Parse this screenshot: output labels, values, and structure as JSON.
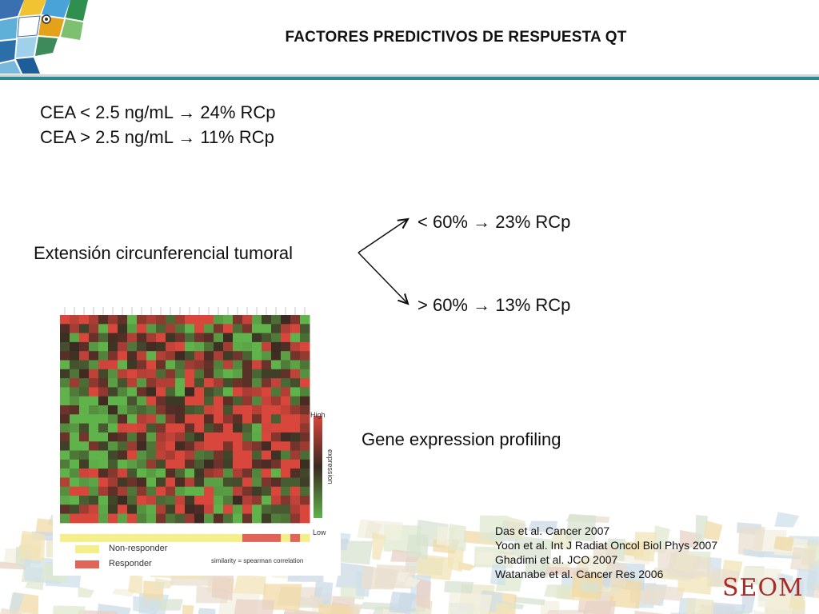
{
  "slide": {
    "title": "FACTORES PREDICTIVOS DE RESPUESTA QT",
    "cea_lines": [
      "CEA < 2.5 ng/mL → 24% RCp",
      "CEA > 2.5 ng/mL → 11% RCp"
    ],
    "extension": {
      "label": "Extensión circunferencial tumoral",
      "branches": [
        "< 60% → 23% RCp",
        "> 60% → 13% RCp"
      ]
    },
    "gene_label": "Gene expression profiling",
    "references": [
      "Das et al.  Cancer 2007",
      "Yoon et al. Int J Radiat Oncol Biol Phys 2007",
      "Ghadimi et al. JCO 2007",
      "Watanabe et al. Cancer Res 2006"
    ],
    "logo_text": "SEOM"
  },
  "heatmap": {
    "scale_high": "High",
    "scale_low": "Low",
    "scale_label": "expression",
    "legend": {
      "non_responder": "Non-responder",
      "responder": "Responder"
    },
    "similarity_note": "similarity = spearman correlation",
    "colors": {
      "red": "#d8463c",
      "green": "#5fb34a",
      "dark": "#3a2a22",
      "non_responder": "#f4ef8a",
      "responder": "#e06458"
    }
  },
  "theme": {
    "title_rule": "#2e8a92",
    "logo": "#aa2a25"
  }
}
